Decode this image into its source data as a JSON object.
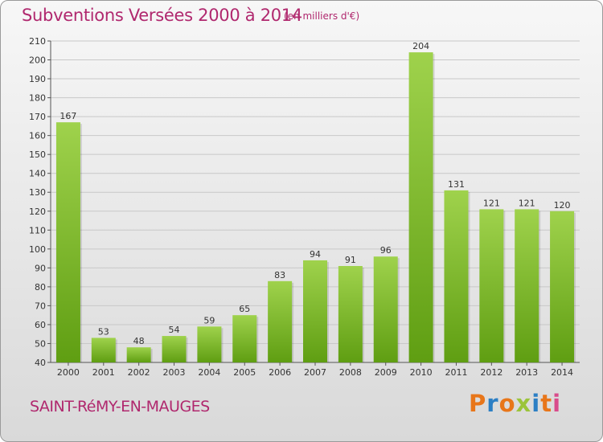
{
  "header": {
    "title": "Subventions Versées 2000 à 2014",
    "subtitle": "(en milliers d'€)"
  },
  "footer": {
    "commune": "SAINT-RéMY-EN-MAUGES",
    "logo": "Proxiti"
  },
  "colors": {
    "title": "#b0286e",
    "bar_light": "#9fd24c",
    "bar_dark": "#5f9e12",
    "grid": "#c8c8c8"
  },
  "chart_data": {
    "type": "bar",
    "categories": [
      "2000",
      "2001",
      "2002",
      "2003",
      "2004",
      "2005",
      "2006",
      "2007",
      "2008",
      "2009",
      "2010",
      "2011",
      "2012",
      "2013",
      "2014"
    ],
    "values": [
      167,
      53,
      48,
      54,
      59,
      65,
      83,
      94,
      91,
      96,
      204,
      131,
      121,
      121,
      120
    ],
    "title": "Subventions Versées 2000 à 2014",
    "subtitle": "(en milliers d'€)",
    "ylim": [
      40,
      210
    ],
    "yticks": [
      40,
      50,
      60,
      70,
      80,
      90,
      100,
      110,
      120,
      130,
      140,
      150,
      160,
      170,
      180,
      190,
      200,
      210
    ],
    "grid": true,
    "data_labels": true
  }
}
